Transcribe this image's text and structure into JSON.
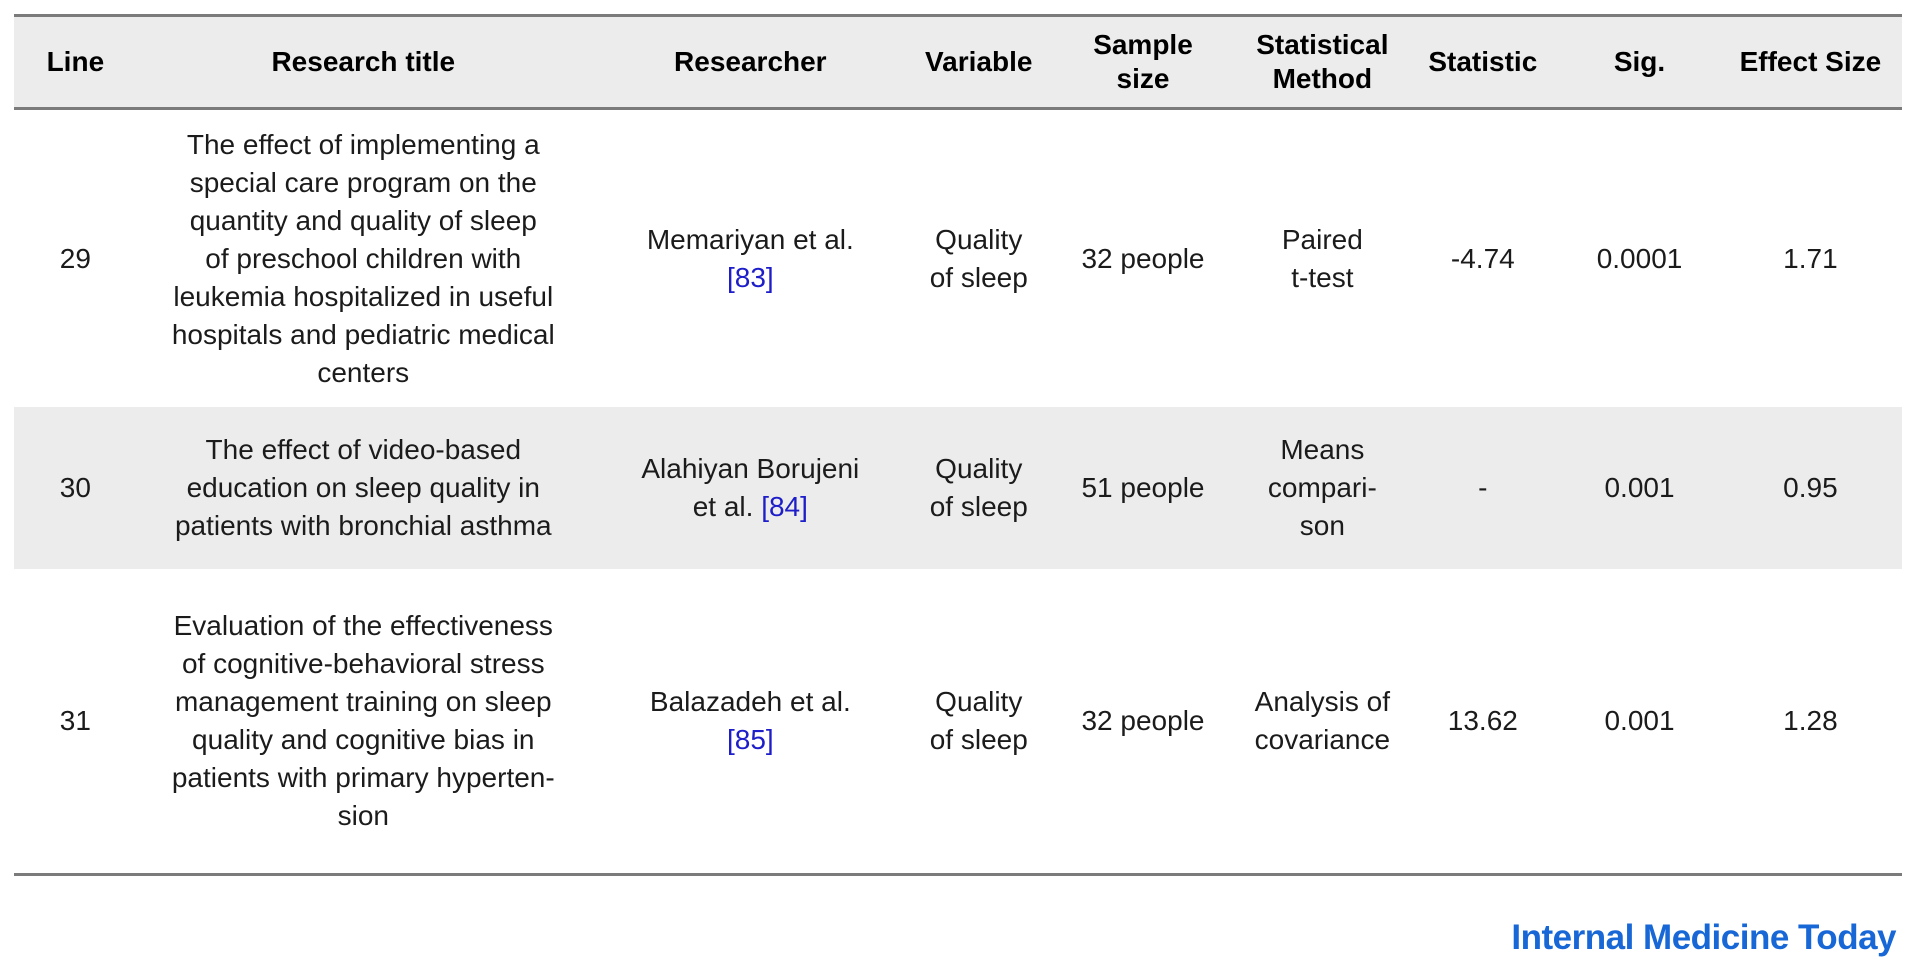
{
  "colors": {
    "shade_gray": "#ECECEC",
    "border_gray": "#7B7B7B",
    "citation_blue": "#1D1DC9",
    "logo_blue": "#1767D6"
  },
  "table": {
    "columns": [
      {
        "id": "line",
        "label": "Line"
      },
      {
        "id": "title",
        "label": "Research title"
      },
      {
        "id": "researcher",
        "label": "Researcher"
      },
      {
        "id": "variable",
        "label": "Variable"
      },
      {
        "id": "sample_size",
        "label": "Sample\nsize"
      },
      {
        "id": "method",
        "label": "Statistical\nMethod"
      },
      {
        "id": "statistic",
        "label": "Statistic"
      },
      {
        "id": "sig",
        "label": "Sig."
      },
      {
        "id": "effect_size",
        "label": "Effect Size"
      }
    ],
    "rows": [
      {
        "line": "29",
        "title": "The effect of implementing a\nspecial care program on the\nquantity and quality of sleep\nof preschool children with\nleukemia hospitalized in useful\nhospitals and pediatric medical\ncenters",
        "researcher_pre": "Memariyan et al.\n",
        "citation": "[83]",
        "variable": "Quality\nof sleep",
        "sample_size": "32 people",
        "method": "Paired\nt-test",
        "statistic": "-4.74",
        "sig": "0.0001",
        "effect_size": "1.71"
      },
      {
        "line": "30",
        "title": "The effect of video-based\neducation on sleep quality in\npatients with bronchial asthma",
        "researcher_pre": "Alahiyan Borujeni\net al. ",
        "citation": "[84]",
        "variable": "Quality\nof sleep",
        "sample_size": "51 people",
        "method": "Means\ncompari-\nson",
        "statistic": "-",
        "sig": "0.001",
        "effect_size": "0.95"
      },
      {
        "line": "31",
        "title": "Evaluation of the effectiveness\nof cognitive-behavioral stress\nmanagement training on sleep\nquality and cognitive bias in\npatients with primary hyperten-\nsion",
        "researcher_pre": "Balazadeh et al.\n",
        "citation": "[85]",
        "variable": "Quality\nof sleep",
        "sample_size": "32 people",
        "method": "Analysis of\ncovariance",
        "statistic": "13.62",
        "sig": "0.001",
        "effect_size": "1.28"
      }
    ]
  },
  "footer": {
    "logo_text": "Internal Medicine Today"
  }
}
